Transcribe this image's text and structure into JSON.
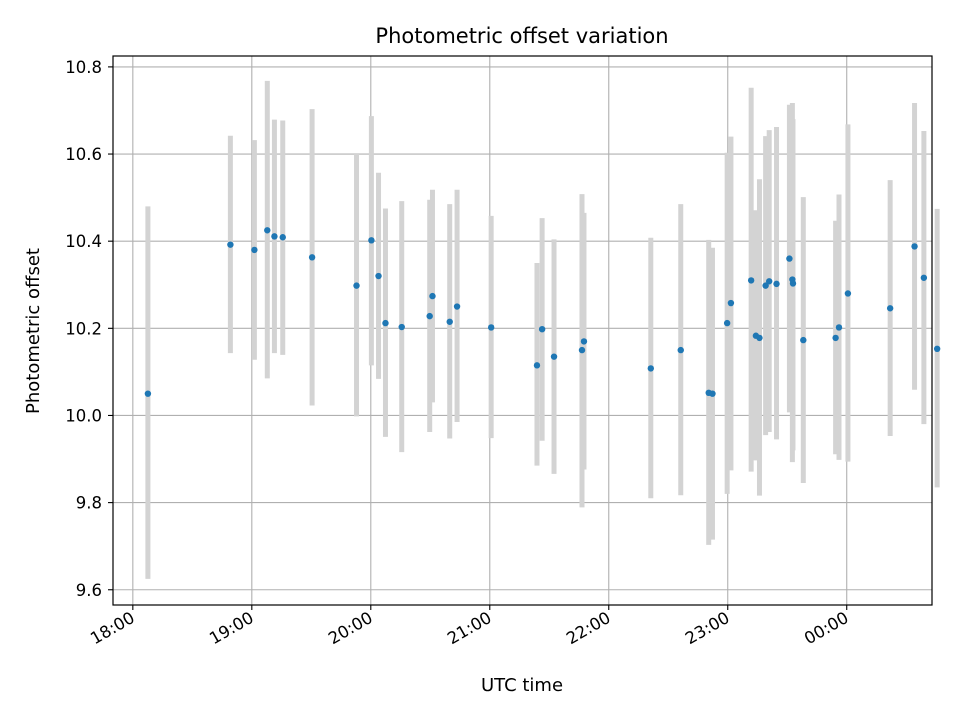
{
  "chart_data": {
    "type": "scatter",
    "title": "Photometric offset variation",
    "xlabel": "UTC time",
    "ylabel": "Photometric offset",
    "xlim_minutes": [
      -10,
      403
    ],
    "ylim": [
      9.565,
      10.825
    ],
    "grid": true,
    "colors": {
      "point": "#1f77b4",
      "errorbar": "#d3d3d3",
      "grid": "#b0b0b0",
      "axes": "#000000"
    },
    "x_tick_labels": [
      "18:00",
      "19:00",
      "20:00",
      "21:00",
      "22:00",
      "23:00",
      "00:00"
    ],
    "x_tick_minutes": [
      0,
      60,
      120,
      180,
      240,
      300,
      360
    ],
    "y_ticks": [
      9.6,
      9.8,
      10.0,
      10.2,
      10.4,
      10.6,
      10.8
    ],
    "y_tick_labels": [
      "9.6",
      "9.8",
      "10.0",
      "10.2",
      "10.4",
      "10.6",
      "10.8"
    ],
    "x_unit": "minutes after 18:00 UTC",
    "points": [
      {
        "x": 7.6,
        "y": 10.05,
        "ylo": 9.625,
        "yhi": 10.48
      },
      {
        "x": 49.2,
        "y": 10.392,
        "ylo": 10.143,
        "yhi": 10.642
      },
      {
        "x": 61.3,
        "y": 10.38,
        "ylo": 10.128,
        "yhi": 10.632
      },
      {
        "x": 67.8,
        "y": 10.425,
        "ylo": 10.085,
        "yhi": 10.768
      },
      {
        "x": 71.4,
        "y": 10.411,
        "ylo": 10.143,
        "yhi": 10.679
      },
      {
        "x": 75.6,
        "y": 10.409,
        "ylo": 10.139,
        "yhi": 10.677
      },
      {
        "x": 90.4,
        "y": 10.363,
        "ylo": 10.023,
        "yhi": 10.703
      },
      {
        "x": 112.8,
        "y": 10.298,
        "ylo": 9.998,
        "yhi": 10.602
      },
      {
        "x": 120.3,
        "y": 10.402,
        "ylo": 10.115,
        "yhi": 10.687
      },
      {
        "x": 123.9,
        "y": 10.32,
        "ylo": 10.084,
        "yhi": 10.557
      },
      {
        "x": 127.4,
        "y": 10.212,
        "ylo": 9.951,
        "yhi": 10.475
      },
      {
        "x": 135.6,
        "y": 10.203,
        "ylo": 9.916,
        "yhi": 10.492
      },
      {
        "x": 149.7,
        "y": 10.228,
        "ylo": 9.962,
        "yhi": 10.495
      },
      {
        "x": 151.1,
        "y": 10.274,
        "ylo": 10.03,
        "yhi": 10.518
      },
      {
        "x": 159.8,
        "y": 10.215,
        "ylo": 9.947,
        "yhi": 10.485
      },
      {
        "x": 163.5,
        "y": 10.25,
        "ylo": 9.985,
        "yhi": 10.518
      },
      {
        "x": 180.7,
        "y": 10.202,
        "ylo": 9.948,
        "yhi": 10.458
      },
      {
        "x": 203.8,
        "y": 10.115,
        "ylo": 9.885,
        "yhi": 10.35
      },
      {
        "x": 206.4,
        "y": 10.198,
        "ylo": 9.942,
        "yhi": 10.453
      },
      {
        "x": 212.4,
        "y": 10.135,
        "ylo": 9.866,
        "yhi": 10.404
      },
      {
        "x": 226.5,
        "y": 10.15,
        "ylo": 9.789,
        "yhi": 10.508
      },
      {
        "x": 227.5,
        "y": 10.17,
        "ylo": 9.876,
        "yhi": 10.465
      },
      {
        "x": 261.2,
        "y": 10.108,
        "ylo": 9.81,
        "yhi": 10.408
      },
      {
        "x": 276.3,
        "y": 10.15,
        "ylo": 9.817,
        "yhi": 10.485
      },
      {
        "x": 290.4,
        "y": 10.052,
        "ylo": 9.703,
        "yhi": 10.403
      },
      {
        "x": 292.3,
        "y": 10.05,
        "ylo": 9.715,
        "yhi": 10.385
      },
      {
        "x": 299.7,
        "y": 10.212,
        "ylo": 9.82,
        "yhi": 10.603
      },
      {
        "x": 301.6,
        "y": 10.258,
        "ylo": 9.874,
        "yhi": 10.64
      },
      {
        "x": 311.8,
        "y": 10.31,
        "ylo": 9.871,
        "yhi": 10.752
      },
      {
        "x": 314.2,
        "y": 10.183,
        "ylo": 9.897,
        "yhi": 10.471
      },
      {
        "x": 316.0,
        "y": 10.178,
        "ylo": 9.816,
        "yhi": 10.542
      },
      {
        "x": 319.1,
        "y": 10.298,
        "ylo": 9.955,
        "yhi": 10.641
      },
      {
        "x": 320.9,
        "y": 10.308,
        "ylo": 9.962,
        "yhi": 10.655
      },
      {
        "x": 324.6,
        "y": 10.302,
        "ylo": 9.945,
        "yhi": 10.662
      },
      {
        "x": 331.1,
        "y": 10.36,
        "ylo": 10.007,
        "yhi": 10.713
      },
      {
        "x": 332.6,
        "y": 10.312,
        "ylo": 9.893,
        "yhi": 10.717
      },
      {
        "x": 332.9,
        "y": 10.303,
        "ylo": 9.92,
        "yhi": 10.68
      },
      {
        "x": 338.1,
        "y": 10.173,
        "ylo": 9.845,
        "yhi": 10.501
      },
      {
        "x": 354.4,
        "y": 10.178,
        "ylo": 9.911,
        "yhi": 10.447
      },
      {
        "x": 356.1,
        "y": 10.202,
        "ylo": 9.898,
        "yhi": 10.507
      },
      {
        "x": 360.6,
        "y": 10.28,
        "ylo": 9.894,
        "yhi": 10.668
      },
      {
        "x": 381.9,
        "y": 10.246,
        "ylo": 9.953,
        "yhi": 10.54
      },
      {
        "x": 394.2,
        "y": 10.388,
        "ylo": 10.059,
        "yhi": 10.717
      },
      {
        "x": 398.9,
        "y": 10.316,
        "ylo": 9.98,
        "yhi": 10.653
      },
      {
        "x": 405.6,
        "y": 10.153,
        "ylo": 9.835,
        "yhi": 10.474
      }
    ]
  }
}
